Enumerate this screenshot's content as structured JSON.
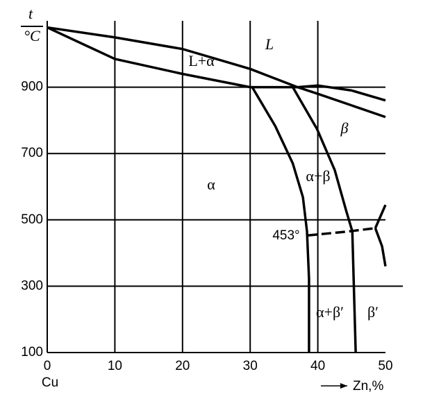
{
  "chart_data": {
    "type": "line",
    "x_label": "Zn,%",
    "x_origin_label": "Cu",
    "y_label_top": "t",
    "y_label_bottom": "°C",
    "xlim": [
      0,
      50
    ],
    "xticks": [
      0,
      10,
      20,
      30,
      40,
      50
    ],
    "ylim": [
      100,
      1100
    ],
    "yticks": [
      100,
      300,
      500,
      700,
      900
    ],
    "grid": true,
    "series": [
      {
        "color": "#000000",
        "x": [
          0,
          10,
          20,
          30,
          37,
          40,
          45,
          50
        ],
        "values": [
          1080,
          1050,
          1015,
          955,
          900,
          905,
          890,
          860
        ]
      },
      {
        "color": "#000000",
        "x": [
          0,
          10,
          20,
          30,
          37
        ],
        "values": [
          1080,
          985,
          940,
          900,
          900
        ]
      },
      {
        "color": "#000000",
        "x": [
          37,
          40,
          45,
          50
        ],
        "values": [
          900,
          880,
          845,
          810
        ]
      },
      {
        "color": "#000000",
        "x": [
          30.3,
          33.7,
          36.3,
          37.8,
          38.4,
          38.7,
          38.7
        ],
        "values": [
          900,
          783,
          670,
          568,
          465,
          322,
          100
        ]
      },
      {
        "color": "#000000",
        "x": [
          36.3,
          39.9,
          42.5,
          44.2,
          45.1,
          45.6
        ],
        "values": [
          900,
          773,
          650,
          527,
          465,
          100
        ]
      },
      {
        "color": "#000000",
        "dashed": true,
        "x": [
          38.5,
          44.5,
          48.5
        ],
        "values": [
          453,
          465,
          475
        ]
      },
      {
        "color": "#000000",
        "x": [
          48.5,
          50
        ],
        "values": [
          475,
          545
        ]
      },
      {
        "color": "#000000",
        "x": [
          48.5,
          49.5,
          50
        ],
        "values": [
          475,
          420,
          360
        ]
      }
    ],
    "annotations": [
      "L",
      "L+α",
      "β",
      "α",
      "α+β",
      "453°",
      "α+β′",
      "β′"
    ]
  }
}
